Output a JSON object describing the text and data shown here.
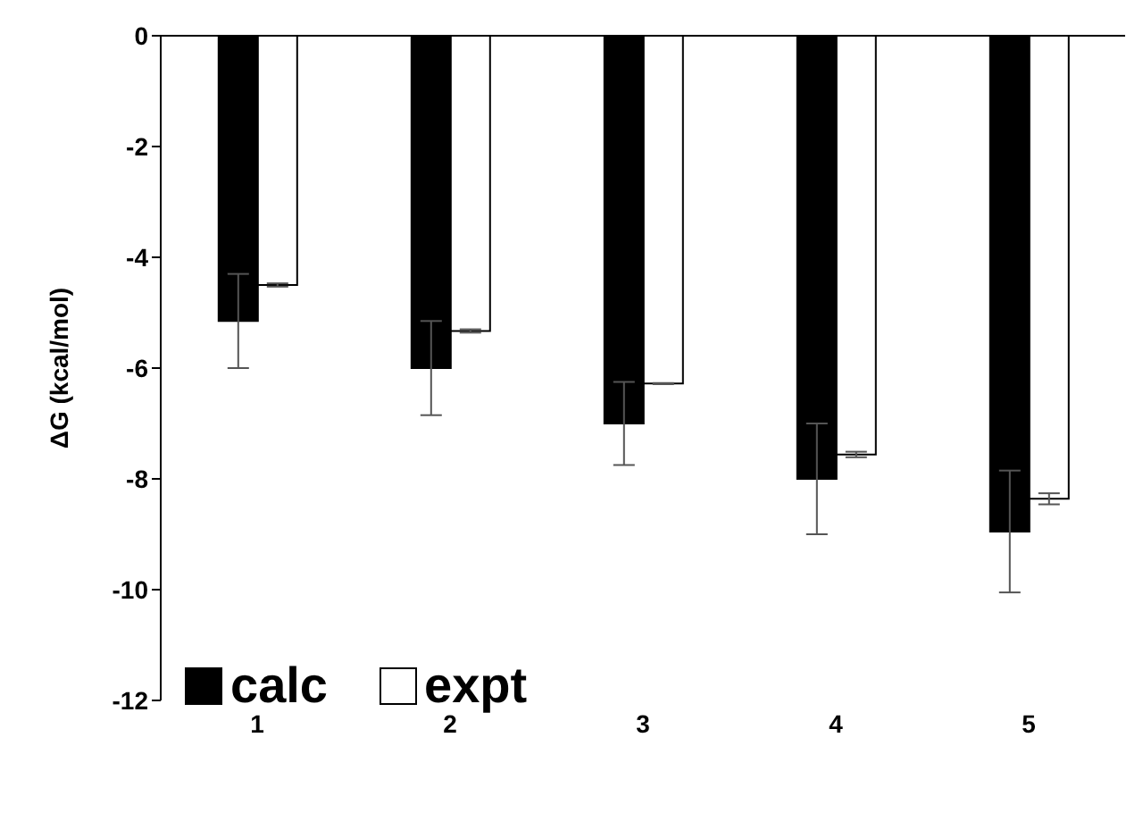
{
  "chart_data": {
    "type": "bar",
    "ylabel": "ΔG (kcal/mol)",
    "categories": [
      "1",
      "2",
      "3",
      "4",
      "5"
    ],
    "series": [
      {
        "name": "calc",
        "color": "#000000",
        "values": [
          -5.15,
          -6.0,
          -7.0,
          -8.0,
          -8.95
        ],
        "errors": [
          0.85,
          0.85,
          0.75,
          1.0,
          1.1
        ]
      },
      {
        "name": "expt",
        "color": "#ffffff",
        "values": [
          -4.5,
          -5.33,
          -6.28,
          -7.56,
          -8.36
        ],
        "errors": [
          0.03,
          0.03,
          0.01,
          0.05,
          0.1
        ]
      }
    ],
    "ylim": [
      -12,
      0
    ],
    "yticks": [
      -12,
      -10,
      -8,
      -6,
      -4,
      -2,
      0
    ],
    "grid": false,
    "legend": "bottom left"
  }
}
